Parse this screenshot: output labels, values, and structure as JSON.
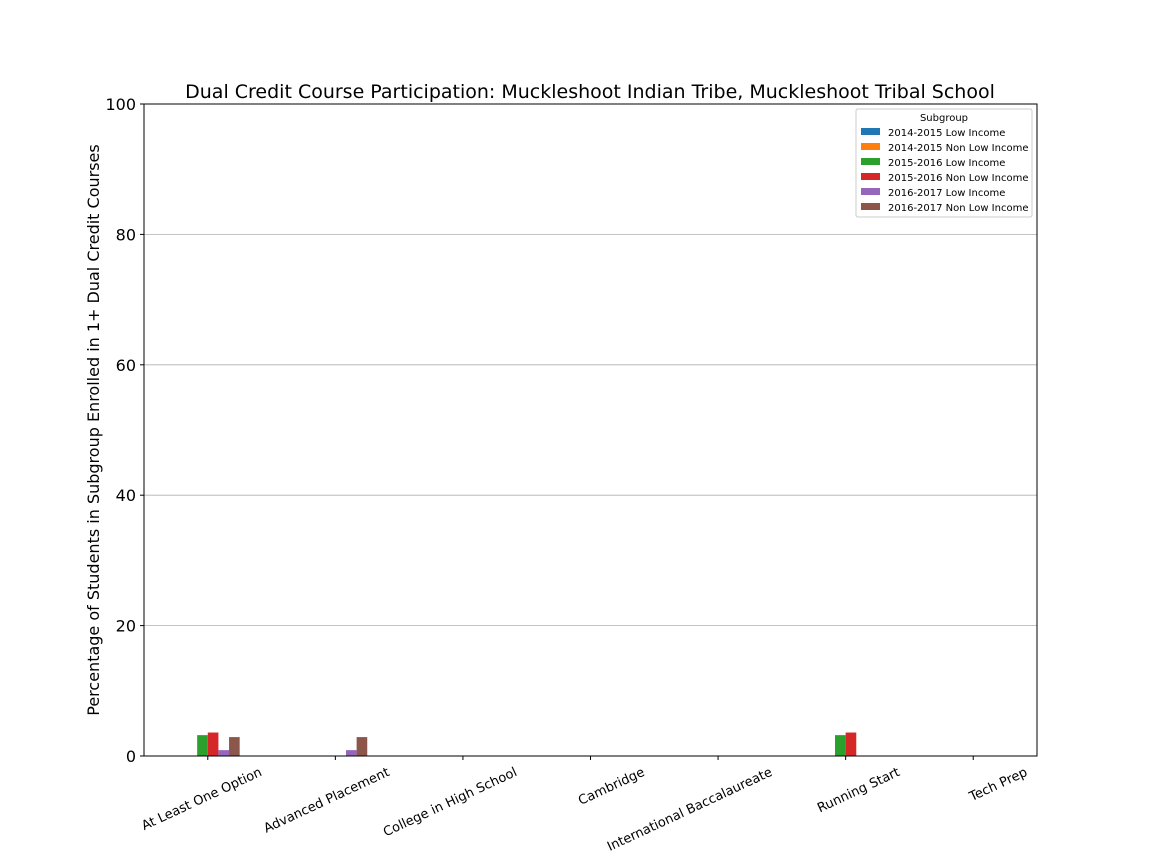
{
  "chart_data": {
    "type": "bar",
    "title": "Dual Credit Course Participation: Muckleshoot Indian Tribe, Muckleshoot Tribal School",
    "xlabel": "",
    "ylabel": "Percentage of Students in Subgroup Enrolled in 1+ Dual Credit Courses",
    "ylim": [
      0,
      100
    ],
    "yticks": [
      0,
      20,
      40,
      60,
      80,
      100
    ],
    "grid": "horizontal",
    "legend": {
      "title": "Subgroup",
      "placement": "top-right"
    },
    "categories": [
      "At Least One Option",
      "Advanced Placement",
      "College in High School",
      "Cambridge",
      "International Baccalaureate",
      "Running Start",
      "Tech Prep"
    ],
    "series": [
      {
        "name": "2014-2015 Low Income",
        "color": "#1f77b4",
        "values": [
          0,
          0,
          0,
          0,
          0,
          0,
          0
        ]
      },
      {
        "name": "2014-2015 Non Low Income",
        "color": "#ff7f0e",
        "values": [
          0,
          0,
          0,
          0,
          0,
          0,
          0
        ]
      },
      {
        "name": "2015-2016 Low Income",
        "color": "#2ca02c",
        "values": [
          3.2,
          0,
          0,
          0,
          0,
          3.2,
          0
        ]
      },
      {
        "name": "2015-2016 Non Low Income",
        "color": "#d62728",
        "values": [
          3.6,
          0,
          0,
          0,
          0,
          3.6,
          0
        ]
      },
      {
        "name": "2016-2017 Low Income",
        "color": "#9467bd",
        "values": [
          0.9,
          0.9,
          0,
          0,
          0,
          0,
          0
        ]
      },
      {
        "name": "2016-2017 Non Low Income",
        "color": "#8c564b",
        "values": [
          2.9,
          2.9,
          0,
          0,
          0,
          0,
          0
        ]
      }
    ]
  }
}
